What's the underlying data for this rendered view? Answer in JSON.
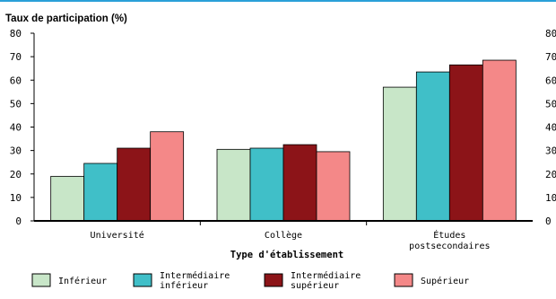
{
  "chart_data": {
    "type": "bar",
    "ylabel": "Taux de participation (%)",
    "xlabel": "Type d'établissement",
    "ylim": [
      0,
      80
    ],
    "yticks": [
      0,
      10,
      20,
      30,
      40,
      50,
      60,
      70,
      80
    ],
    "categories": [
      [
        "Université"
      ],
      [
        "Collège"
      ],
      [
        "Études",
        "postsecondaires"
      ]
    ],
    "series": [
      {
        "name": "Inférieur",
        "label_lines": [
          "Inférieur"
        ],
        "color": "#c8e6c8",
        "values": [
          19,
          30.5,
          57
        ]
      },
      {
        "name": "Intermédiaire inférieur",
        "label_lines": [
          "Intermédiaire",
          "inférieur"
        ],
        "color": "#40bfc8",
        "values": [
          24.5,
          31,
          63.5
        ]
      },
      {
        "name": "Intermédiaire supérieur",
        "label_lines": [
          "Intermédiaire",
          "supérieur"
        ],
        "color": "#8c1418",
        "values": [
          31,
          32.5,
          66.5
        ]
      },
      {
        "name": "Supérieur",
        "label_lines": [
          "Supérieur"
        ],
        "color": "#f48888",
        "values": [
          38,
          29.5,
          68.5
        ]
      }
    ],
    "grid": false,
    "legend_position": "bottom",
    "accent_color": "#2aa0d8"
  }
}
